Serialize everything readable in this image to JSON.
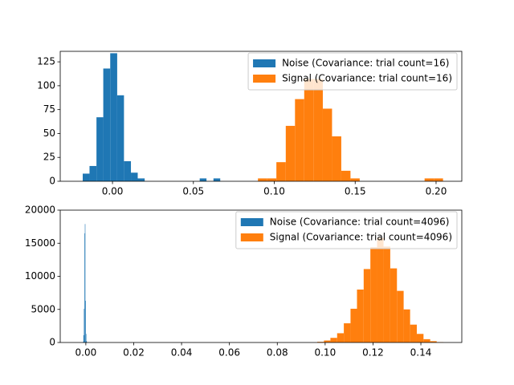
{
  "chart_data": [
    {
      "type": "histogram",
      "series": [
        {
          "name": "Noise (Covariance: trial count=16)",
          "color": "#1f77b4",
          "bins": [
            -0.0184,
            -0.0142,
            -0.0099,
            -0.0057,
            -0.0014,
            0.0029,
            0.0071,
            0.0114,
            0.0156,
            0.0199,
            0.0241,
            0.0284,
            0.0326,
            0.0369,
            0.0411,
            0.0454,
            0.0496,
            0.0539,
            0.0581,
            0.0624,
            0.0666
          ],
          "counts": [
            8,
            16,
            67,
            118,
            134,
            90,
            21,
            9,
            3,
            0,
            0,
            0,
            0,
            0,
            0,
            0,
            0,
            3,
            0,
            3
          ]
        },
        {
          "name": "Signal (Covariance: trial count=16)",
          "color": "#ff7f0e",
          "bins": [
            0.0899,
            0.0956,
            0.1013,
            0.1071,
            0.1128,
            0.1185,
            0.1242,
            0.13,
            0.1357,
            0.1414,
            0.1471,
            0.1528,
            0.1586,
            0.1643,
            0.17,
            0.1757,
            0.1815,
            0.1872,
            0.1929,
            0.1986,
            0.2043
          ],
          "counts": [
            3,
            3,
            20,
            58,
            86,
            107,
            107,
            76,
            47,
            11,
            3,
            0,
            0,
            0,
            0,
            0,
            0,
            0,
            3,
            3
          ]
        }
      ],
      "xlim": [
        -0.0323,
        0.2159
      ],
      "ylim": [
        0,
        136
      ],
      "xticks": [
        {
          "value": 0,
          "label": "0.00"
        },
        {
          "value": 0.05,
          "label": "0.05"
        },
        {
          "value": 0.1,
          "label": "0.10"
        },
        {
          "value": 0.15,
          "label": "0.15"
        },
        {
          "value": 0.2,
          "label": "0.20"
        }
      ],
      "yticks": [
        0,
        25,
        50,
        75,
        100,
        125
      ],
      "legend": "upper right"
    },
    {
      "type": "histogram",
      "series": [
        {
          "name": "Noise (Covariance: trial count=4096)",
          "color": "#1f77b4",
          "bins": [
            -0.0012,
            -0.001,
            -0.0008,
            -0.0006,
            -0.0004,
            -0.0002,
            0,
            0.0002,
            0.0004,
            0.0006,
            0.0008
          ],
          "counts": [
            100,
            1100,
            5100,
            16500,
            17900,
            6300,
            1300,
            200,
            30,
            5
          ]
        },
        {
          "name": "Signal (Covariance: trial count=4096)",
          "color": "#ff7f0e",
          "bins": [
            0.0967,
            0.0995,
            0.1022,
            0.105,
            0.1078,
            0.1106,
            0.1133,
            0.1161,
            0.1189,
            0.1217,
            0.1244,
            0.1272,
            0.13,
            0.1328,
            0.1355,
            0.1383,
            0.1411,
            0.1439,
            0.1466,
            0.1494
          ],
          "counts": [
            100,
            300,
            700,
            1400,
            2900,
            5100,
            8000,
            11100,
            14400,
            15800,
            14500,
            11200,
            7800,
            5000,
            2700,
            1300,
            500,
            200,
            50
          ]
        }
      ],
      "xlim": [
        -0.0107,
        0.1571
      ],
      "ylim": [
        0,
        20000
      ],
      "xticks": [
        {
          "value": 0,
          "label": "0.00"
        },
        {
          "value": 0.02,
          "label": "0.02"
        },
        {
          "value": 0.04,
          "label": "0.04"
        },
        {
          "value": 0.06,
          "label": "0.06"
        },
        {
          "value": 0.08,
          "label": "0.08"
        },
        {
          "value": 0.1,
          "label": "0.10"
        },
        {
          "value": 0.12,
          "label": "0.12"
        },
        {
          "value": 0.14,
          "label": "0.14"
        }
      ],
      "yticks": [
        0,
        5000,
        10000,
        15000,
        20000
      ],
      "legend": "upper right"
    }
  ]
}
